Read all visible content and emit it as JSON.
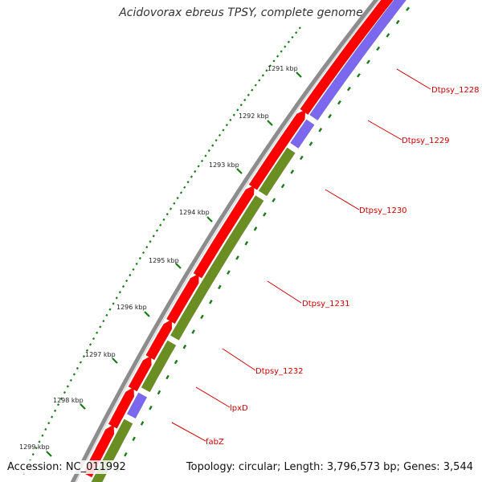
{
  "title": "Acidovorax ebreus TPSY, complete genome",
  "footer": {
    "accession": "Accession: NC_011992",
    "topology": "Topology: circular; Length: 3,796,573 bp; Genes: 3,544"
  },
  "colors": {
    "backbone": "#8c8c8c",
    "forward_cds": "#ff0000",
    "reverse_cds_a": "#7b68ee",
    "reverse_cds_b": "#6b8e23",
    "tick": "#1a7a1a",
    "label_line": "#cc0000"
  },
  "scale_labels": [
    "1291 kbp",
    "1292 kbp",
    "1293 kbp",
    "1294 kbp",
    "1295 kbp",
    "1296 kbp",
    "1297 kbp",
    "1298 kbp",
    "1299 kbp"
  ],
  "gene_labels": [
    "Dtpsy_1228",
    "Dtpsy_1229",
    "Dtpsy_1230",
    "Dtpsy_1231",
    "Dtpsy_1232",
    "lpxD",
    "fabZ"
  ]
}
